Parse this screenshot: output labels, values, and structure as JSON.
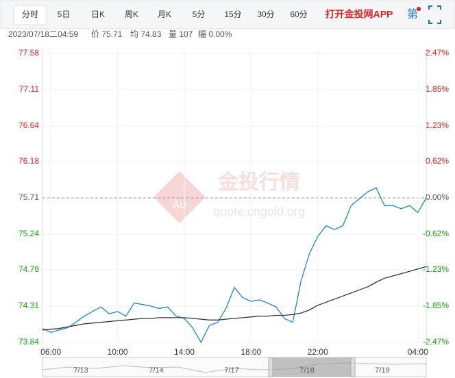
{
  "toolbar": {
    "tabs": [
      "分时",
      "5日",
      "日K",
      "周K",
      "月K",
      "5分",
      "15分",
      "30分",
      "60分"
    ],
    "app_link": "打开金投网APP",
    "strategy": "第"
  },
  "info": {
    "datetime": "2023/07/18二04:59",
    "price": "价 75.71",
    "average": "均 74.83",
    "volume": "量 107",
    "change": "幅 0.00%"
  },
  "watermark": {
    "name": "金投行情",
    "url": "quote.cngold.org",
    "logo": "AU"
  },
  "navigator": {
    "dates": [
      "7/13",
      "7/14",
      "7/17",
      "7/18",
      "7/19"
    ]
  },
  "chart_data": {
    "type": "line",
    "x": [
      null,
      "06:00",
      null,
      null,
      null,
      null,
      null,
      null,
      null,
      "10:00",
      null,
      null,
      null,
      null,
      null,
      null,
      null,
      "14:00",
      null,
      null,
      null,
      null,
      null,
      null,
      null,
      "18:00",
      null,
      null,
      null,
      null,
      null,
      null,
      null,
      "22:00",
      null,
      null,
      null,
      null,
      null,
      null,
      null,
      null,
      null,
      null,
      null,
      "04:00",
      null
    ],
    "series": [
      {
        "name": "价",
        "color": "#1f86c8",
        "values": [
          74.02,
          73.97,
          74.0,
          74.03,
          74.1,
          74.18,
          74.24,
          74.3,
          74.21,
          74.24,
          74.18,
          74.35,
          74.33,
          74.31,
          74.28,
          74.3,
          74.18,
          74.15,
          74.03,
          73.84,
          74.06,
          74.1,
          74.28,
          74.55,
          74.42,
          74.37,
          74.39,
          74.35,
          74.3,
          74.15,
          74.1,
          74.64,
          74.99,
          75.21,
          75.35,
          75.3,
          75.35,
          75.61,
          75.7,
          75.79,
          75.84,
          75.61,
          75.61,
          75.57,
          75.61,
          75.52,
          75.71
        ]
      },
      {
        "name": "均",
        "color": "#333333",
        "values": [
          74.0,
          74.01,
          74.02,
          74.04,
          74.06,
          74.08,
          74.09,
          74.1,
          74.11,
          74.12,
          74.13,
          74.14,
          74.15,
          74.15,
          74.16,
          74.16,
          74.16,
          74.16,
          74.15,
          74.14,
          74.13,
          74.13,
          74.14,
          74.15,
          74.16,
          74.17,
          74.18,
          74.18,
          74.19,
          74.19,
          74.2,
          74.22,
          74.26,
          74.32,
          74.36,
          74.4,
          74.44,
          74.48,
          74.52,
          74.56,
          74.62,
          74.67,
          74.7,
          74.73,
          74.76,
          74.79,
          74.82
        ]
      }
    ],
    "ylim": [
      73.84,
      77.58
    ],
    "yticks": [
      77.58,
      77.11,
      76.64,
      76.18,
      75.71,
      75.24,
      74.78,
      74.31,
      73.84
    ],
    "y2lim": [
      -2.47,
      2.47
    ],
    "y2ticks": [
      {
        "value": 2.47,
        "label": "2.47%"
      },
      {
        "value": 1.85,
        "label": "1.85%"
      },
      {
        "value": 1.23,
        "label": "1.23%"
      },
      {
        "value": 0.62,
        "label": "0.62%"
      },
      {
        "value": 0,
        "label": "0.00%"
      },
      {
        "value": -0.62,
        "label": "-0.62%"
      },
      {
        "value": -1.23,
        "label": "-1.23%"
      },
      {
        "value": -1.85,
        "label": "-1.85%"
      },
      {
        "value": -2.47,
        "label": "-2.47%"
      }
    ],
    "reference_line": 75.71,
    "up_color": "#e02020",
    "down_color": "#13a313",
    "flat_color": "#555555",
    "grid": true
  }
}
